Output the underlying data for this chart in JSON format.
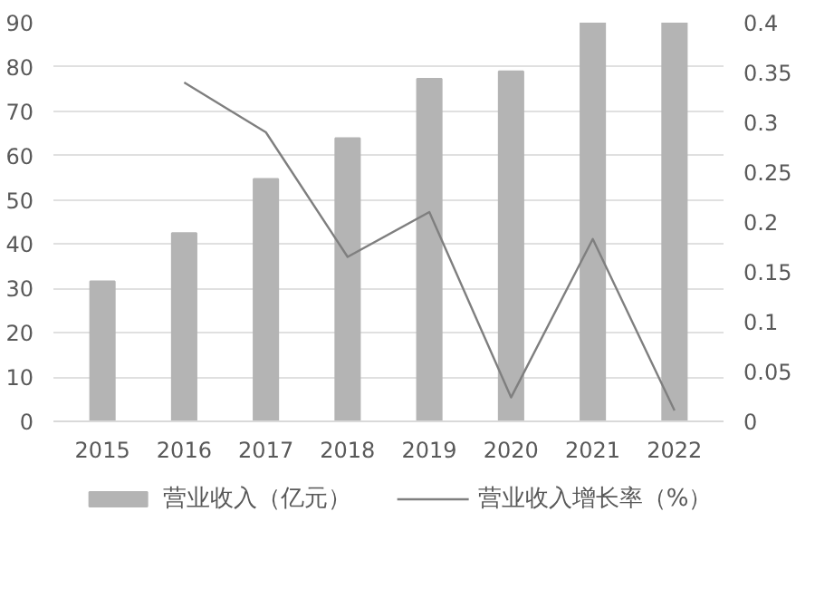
{
  "chart_data": {
    "type": "bar",
    "categories": [
      "2015",
      "2016",
      "2017",
      "2018",
      "2019",
      "2020",
      "2021",
      "2022"
    ],
    "series": [
      {
        "name": "营业收入（亿元）",
        "color": "#b4b4b4",
        "values": [
          31.6,
          42.5,
          54.7,
          63.9,
          77.3,
          79,
          90,
          90
        ]
      },
      {
        "name": "营业收入增长率（%）",
        "type": "line",
        "axis": "y2",
        "color": "#7f7f7f",
        "values": [
          null,
          0.34,
          0.29,
          0.165,
          0.21,
          0.024,
          0.183,
          0.011
        ]
      }
    ],
    "ylim": [
      0,
      90
    ],
    "yticks": [
      0,
      10,
      20,
      30,
      40,
      50,
      60,
      70,
      80,
      90
    ],
    "y2lim": [
      0,
      0.4
    ],
    "y2ticks": [
      0,
      {
        "value": 0.05,
        "label": "0.05"
      },
      {
        "value": 0.1,
        "label": "0.1"
      },
      {
        "value": 0.15,
        "label": "0.15"
      },
      {
        "value": 0.2,
        "label": "0.2"
      },
      {
        "value": 0.25,
        "label": "0.25"
      },
      {
        "value": 0.3,
        "label": "0.3"
      },
      {
        "value": 0.35,
        "label": "0.35"
      },
      {
        "value": 0.4,
        "label": "0.4"
      }
    ],
    "grid": "y",
    "legend": "bottom"
  }
}
